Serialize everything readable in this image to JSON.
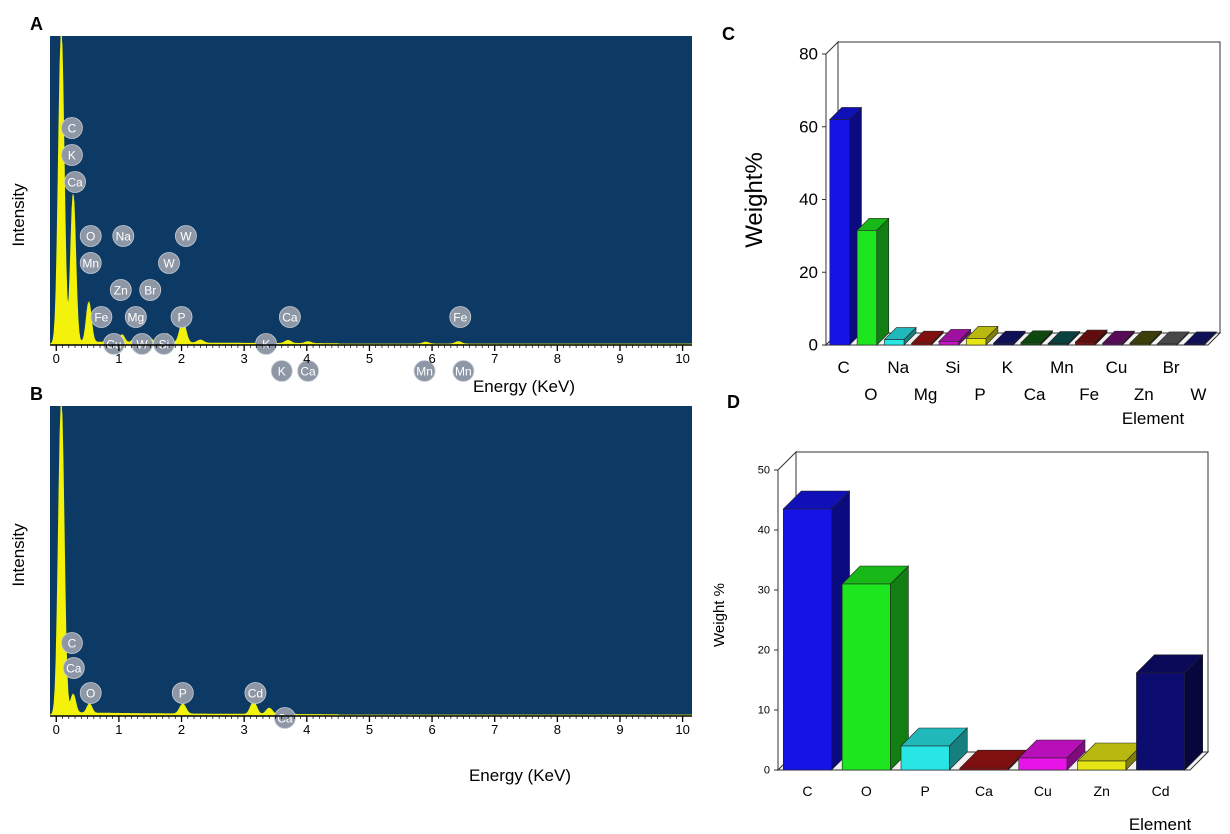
{
  "colors": {
    "spectrum_bg": "#0d3a64",
    "spectrum_peak": "#f2f20a",
    "peak_label_fill": "#8e97a6",
    "peak_label_text": "#ffffff"
  },
  "chart_data": [
    {
      "id": "A",
      "panel_letter": "A",
      "type": "line",
      "subtype": "eds-spectrum",
      "xlabel": "Energy (KeV)",
      "ylabel": "Intensity",
      "xlim": [
        -0.1,
        10.15
      ],
      "ylim": [
        0,
        100
      ],
      "x_ticks": [
        "0",
        "1",
        "2",
        "3",
        "4",
        "5",
        "6",
        "7",
        "8",
        "9",
        "10"
      ],
      "peaks": [
        {
          "x": 0.08,
          "y": 100,
          "w": 0.045
        },
        {
          "x": 0.27,
          "y": 48,
          "w": 0.04
        },
        {
          "x": 0.52,
          "y": 13,
          "w": 0.04
        },
        {
          "x": 0.85,
          "y": 2,
          "w": 0.04
        },
        {
          "x": 1.05,
          "y": 2.5,
          "w": 0.04
        },
        {
          "x": 1.25,
          "y": 1.2,
          "w": 0.04
        },
        {
          "x": 1.5,
          "y": 1.4,
          "w": 0.04
        },
        {
          "x": 1.77,
          "y": 3,
          "w": 0.04
        },
        {
          "x": 2.02,
          "y": 7,
          "w": 0.05
        },
        {
          "x": 2.3,
          "y": 1,
          "w": 0.05
        },
        {
          "x": 3.35,
          "y": 0.8,
          "w": 0.05
        },
        {
          "x": 3.7,
          "y": 1,
          "w": 0.05
        },
        {
          "x": 4.02,
          "y": 0.6,
          "w": 0.05
        },
        {
          "x": 5.9,
          "y": 0.6,
          "w": 0.05
        },
        {
          "x": 6.42,
          "y": 0.8,
          "w": 0.05
        }
      ],
      "peak_labels": [
        {
          "text": "C",
          "x": 0.25,
          "row": 0
        },
        {
          "text": "K",
          "x": 0.25,
          "row": 1
        },
        {
          "text": "Ca",
          "x": 0.3,
          "row": 2
        },
        {
          "text": "O",
          "x": 0.55,
          "row": 4
        },
        {
          "text": "Na",
          "x": 1.07,
          "row": 4
        },
        {
          "text": "W",
          "x": 2.07,
          "row": 4
        },
        {
          "text": "W",
          "x": 1.8,
          "row": 5
        },
        {
          "text": "Mn",
          "x": 0.55,
          "row": 5
        },
        {
          "text": "Zn",
          "x": 1.03,
          "row": 6
        },
        {
          "text": "Br",
          "x": 1.5,
          "row": 6
        },
        {
          "text": "Fe",
          "x": 0.72,
          "row": 7
        },
        {
          "text": "Mg",
          "x": 1.27,
          "row": 7
        },
        {
          "text": "P",
          "x": 2.0,
          "row": 7
        },
        {
          "text": "Si",
          "x": 1.72,
          "row": 8
        },
        {
          "text": "Cu",
          "x": 0.92,
          "row": 8
        },
        {
          "text": "W",
          "x": 1.37,
          "row": 8
        },
        {
          "text": "Ca",
          "x": 3.73,
          "row": 7
        },
        {
          "text": "K",
          "x": 3.35,
          "row": 8
        },
        {
          "text": "K",
          "x": 3.6,
          "row": 9
        },
        {
          "text": "Ca",
          "x": 4.02,
          "row": 9
        },
        {
          "text": "Fe",
          "x": 6.45,
          "row": 7
        },
        {
          "text": "Mn",
          "x": 5.88,
          "row": 9
        },
        {
          "text": "Mn",
          "x": 6.5,
          "row": 9
        }
      ]
    },
    {
      "id": "B",
      "panel_letter": "B",
      "type": "line",
      "subtype": "eds-spectrum",
      "xlabel": "Energy (KeV)",
      "ylabel": "Intensity",
      "xlim": [
        -0.1,
        10.15
      ],
      "ylim": [
        0,
        100
      ],
      "x_ticks": [
        "0",
        "1",
        "2",
        "3",
        "4",
        "5",
        "6",
        "7",
        "8",
        "9",
        "10"
      ],
      "peaks": [
        {
          "x": 0.08,
          "y": 100,
          "w": 0.045
        },
        {
          "x": 0.27,
          "y": 6,
          "w": 0.04
        },
        {
          "x": 0.53,
          "y": 3,
          "w": 0.04
        },
        {
          "x": 2.02,
          "y": 3.2,
          "w": 0.05
        },
        {
          "x": 3.15,
          "y": 4,
          "w": 0.05
        },
        {
          "x": 3.4,
          "y": 2,
          "w": 0.05
        },
        {
          "x": 3.7,
          "y": 1.2,
          "w": 0.05
        }
      ],
      "peak_labels": [
        {
          "text": "C",
          "x": 0.25,
          "row": 0
        },
        {
          "text": "Ca",
          "x": 0.28,
          "row": 1
        },
        {
          "text": "O",
          "x": 0.55,
          "row": 2
        },
        {
          "text": "P",
          "x": 2.02,
          "row": 2
        },
        {
          "text": "Cd",
          "x": 3.18,
          "row": 2
        },
        {
          "text": "Ca",
          "x": 3.65,
          "row": 3
        }
      ]
    },
    {
      "id": "C",
      "panel_letter": "C",
      "type": "bar",
      "subtype": "3d-bar",
      "xlabel": "Element",
      "ylabel": "Weight%",
      "ylim": [
        0,
        80
      ],
      "y_ticks": [
        "0",
        "20",
        "40",
        "60",
        "80"
      ],
      "categories": [
        "C",
        "O",
        "Na",
        "Mg",
        "Si",
        "P",
        "K",
        "Ca",
        "Mn",
        "Fe",
        "Cu",
        "Zn",
        "Br",
        "W"
      ],
      "values": [
        62,
        31.5,
        1.5,
        0.5,
        1,
        1.8,
        0.5,
        0.6,
        0.4,
        0.8,
        0.5,
        0.5,
        0.3,
        0.3
      ],
      "colors": [
        "#1414e6",
        "#1ee61e",
        "#28e6e6",
        "#a01414",
        "#c814c8",
        "#e6e614",
        "#14146e",
        "#125a12",
        "#0c5050",
        "#7a1010",
        "#6e0f6e",
        "#4e4e0c",
        "#5a5a5a",
        "#14146e"
      ]
    },
    {
      "id": "D",
      "panel_letter": "D",
      "type": "bar",
      "subtype": "3d-bar",
      "xlabel": "Element",
      "ylabel": "Weight %",
      "ylim": [
        0,
        50
      ],
      "y_ticks": [
        "0",
        "10",
        "20",
        "30",
        "40",
        "50"
      ],
      "categories": [
        "C",
        "O",
        "P",
        "Ca",
        "Cu",
        "Zn",
        "Cd"
      ],
      "values": [
        43.5,
        31,
        4,
        0.3,
        2,
        1.5,
        16.2
      ],
      "colors": [
        "#1414e6",
        "#1ee61e",
        "#28e6e6",
        "#a01414",
        "#e614e6",
        "#e6e614",
        "#0c0c6e"
      ]
    }
  ]
}
